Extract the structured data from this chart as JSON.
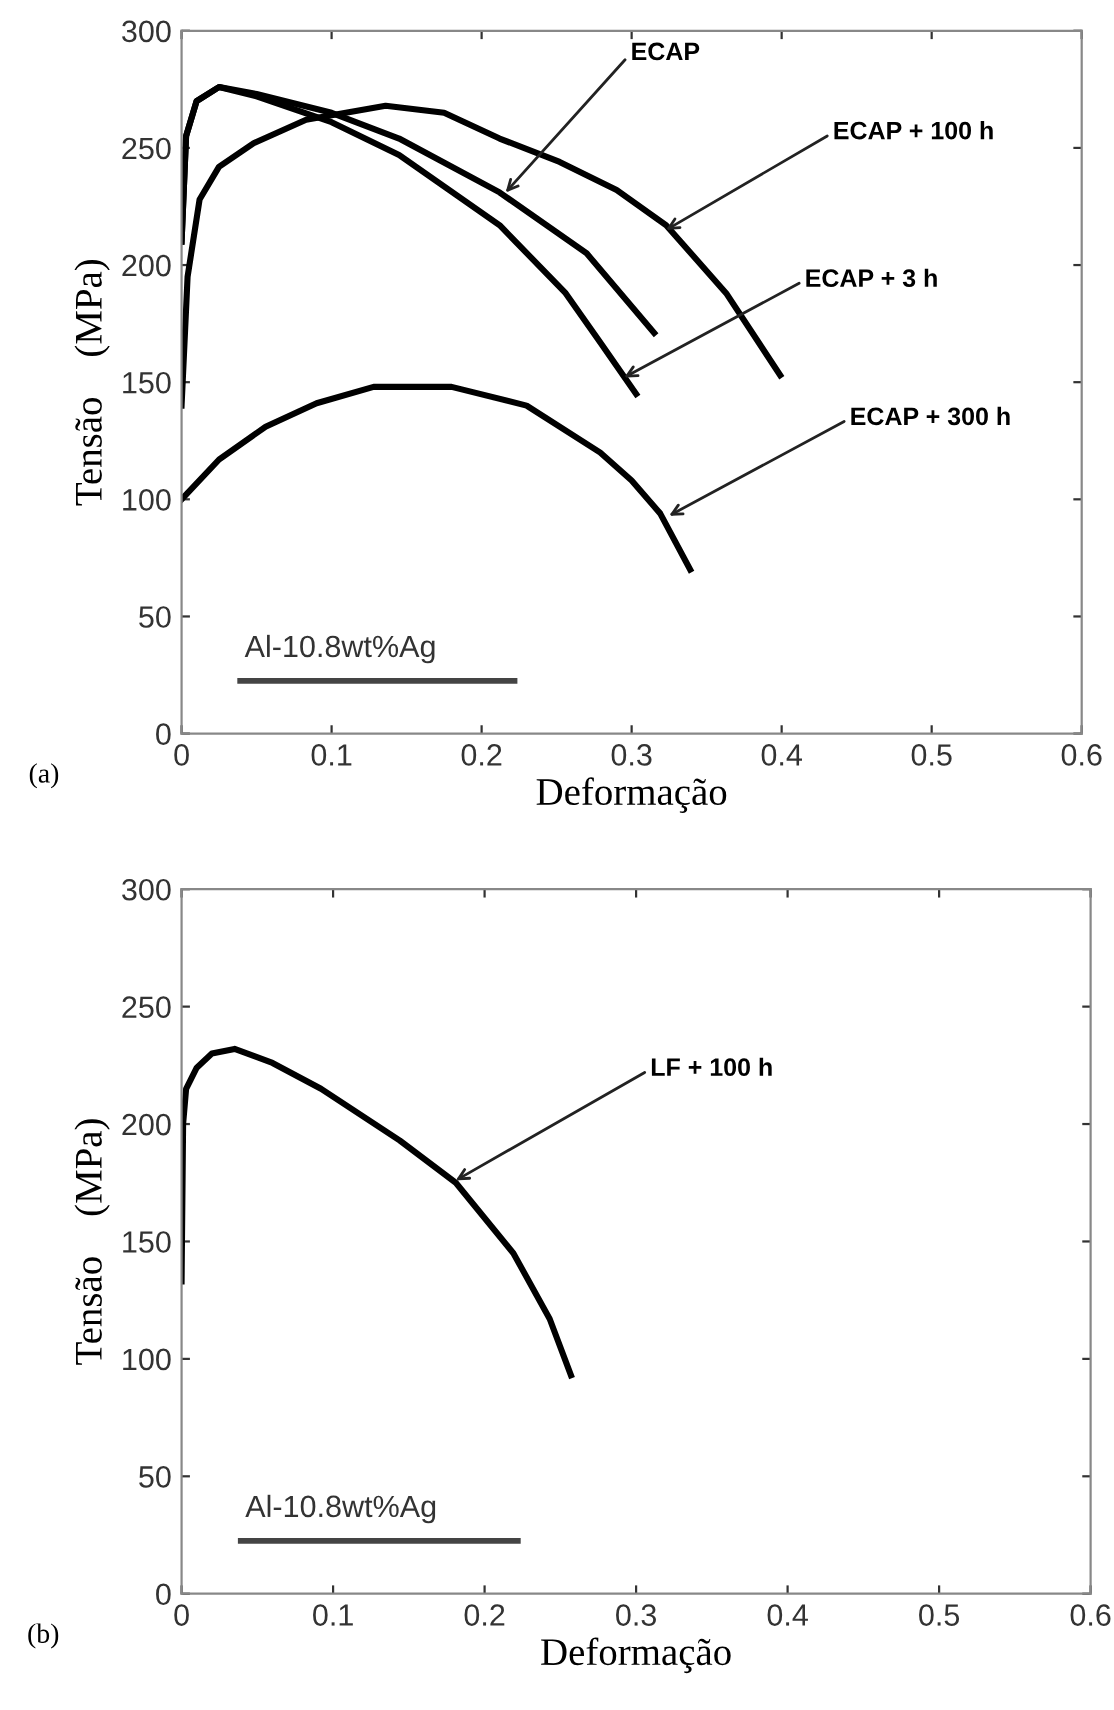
{
  "chart_data": [
    {
      "type": "line",
      "xlabel": "Deformação",
      "ylabel": "Tensão    (MPa)",
      "xlim": [
        0,
        0.6
      ],
      "ylim": [
        0,
        300
      ],
      "xticks": [
        0,
        0.1,
        0.2,
        0.3,
        0.4,
        0.5,
        0.6
      ],
      "yticks": [
        0,
        50,
        100,
        150,
        200,
        250,
        300
      ],
      "grid": false,
      "marker": "none",
      "line_style": "solid",
      "series": [
        {
          "color": "#000000",
          "x": [
            0,
            0.003,
            0.01,
            0.025,
            0.05,
            0.1,
            0.145,
            0.212,
            0.27,
            0.315
          ],
          "values": [
            210,
            255,
            270,
            276,
            273,
            265,
            254,
            231,
            205,
            171
          ]
        },
        {
          "color": "#000000",
          "x": [
            0,
            0.003,
            0.01,
            0.025,
            0.05,
            0.1,
            0.145,
            0.212,
            0.256,
            0.279,
            0.303
          ],
          "values": [
            210,
            255,
            270,
            276,
            272,
            261,
            247,
            217,
            188,
            167,
            145
          ]
        },
        {
          "color": "#000000",
          "x": [
            0,
            0.004,
            0.012,
            0.025,
            0.048,
            0.083,
            0.136,
            0.175,
            0.212,
            0.252,
            0.29,
            0.323,
            0.363,
            0.399
          ],
          "values": [
            140,
            195,
            228,
            242,
            252,
            262,
            268,
            265,
            254,
            244,
            232,
            217,
            188,
            153
          ]
        },
        {
          "color": "#000000",
          "x": [
            0,
            0.025,
            0.056,
            0.09,
            0.128,
            0.18,
            0.23,
            0.279,
            0.3,
            0.319,
            0.339
          ],
          "values": [
            100,
            117,
            131,
            141,
            148,
            148,
            140,
            120,
            108,
            94,
            70
          ]
        }
      ],
      "annotations": [
        {
          "text": "ECAP",
          "x": 0.216,
          "y": 231
        },
        {
          "text": "ECAP + 100 h",
          "x": 0.323,
          "y": 215
        },
        {
          "text": "ECAP + 3 h",
          "x": 0.295,
          "y": 152
        },
        {
          "text": "ECAP + 300 h",
          "x": 0.325,
          "y": 93
        },
        "Al-10.8wt%Ag",
        "(a)"
      ]
    },
    {
      "type": "line",
      "xlabel": "Deformação",
      "ylabel": "Tensão    (MPa)",
      "xlim": [
        0,
        0.6
      ],
      "ylim": [
        0,
        300
      ],
      "xticks": [
        0,
        0.1,
        0.2,
        0.3,
        0.4,
        0.5,
        0.6
      ],
      "yticks": [
        0,
        50,
        100,
        150,
        200,
        250,
        300
      ],
      "grid": false,
      "marker": "none",
      "line_style": "solid",
      "series": [
        {
          "color": "#000000",
          "x": [
            0,
            0.001,
            0.003,
            0.01,
            0.02,
            0.035,
            0.06,
            0.092,
            0.144,
            0.181,
            0.219,
            0.243,
            0.257
          ],
          "values": [
            133,
            200,
            215,
            224,
            230,
            232,
            226,
            215,
            193,
            175,
            145,
            117,
            93
          ]
        }
      ],
      "annotations": [
        {
          "text": "LF + 100 h",
          "x": 0.181,
          "y": 176
        },
        "Al-10.8wt%Ag",
        "(b)"
      ]
    }
  ]
}
